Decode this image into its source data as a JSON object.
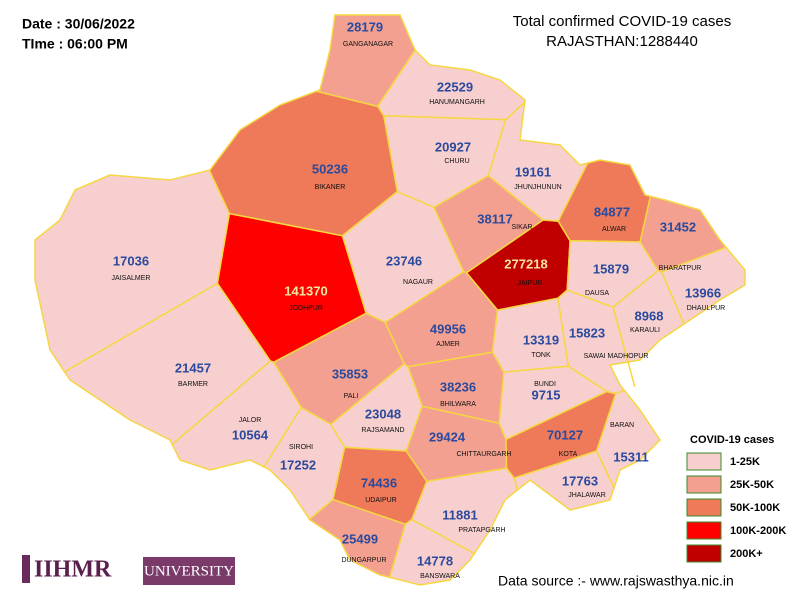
{
  "header": {
    "date": "Date : 30/06/2022",
    "time": "TIme : 06:00 PM",
    "title": "Total confirmed COVID-19 cases",
    "total": "RAJASTHAN:1288440"
  },
  "districts": [
    {
      "name": "GANGANAGAR",
      "cases": "28179",
      "color": "#f4a090"
    },
    {
      "name": "HANUMANGARH",
      "cases": "22529",
      "color": "#f8cfcf"
    },
    {
      "name": "CHURU",
      "cases": "20927",
      "color": "#f8cfcf"
    },
    {
      "name": "JHUNJHUNUN",
      "cases": "19161",
      "color": "#f8cfcf"
    },
    {
      "name": "BIKANER",
      "cases": "50236",
      "color": "#ef7a5a"
    },
    {
      "name": "SIKAR",
      "cases": "38117",
      "color": "#f4a090"
    },
    {
      "name": "ALWAR",
      "cases": "84877",
      "color": "#ef7a5a"
    },
    {
      "name": "BHARATPUR",
      "cases": "31452",
      "color": "#f4a090"
    },
    {
      "name": "JAISALMER",
      "cases": "17036",
      "color": "#f8cfcf"
    },
    {
      "name": "JAIPUR",
      "cases": "277218",
      "color": "#c00000",
      "label_color": "#f5e6a0"
    },
    {
      "name": "DAUSA",
      "cases": "15879",
      "color": "#f8cfcf"
    },
    {
      "name": "DHAULPUR",
      "cases": "13966",
      "color": "#f8cfcf"
    },
    {
      "name": "NAGAUR",
      "cases": "23746",
      "color": "#f8cfcf"
    },
    {
      "name": "JODHPUR",
      "cases": "141370",
      "color": "#fe0000",
      "label_color": "#f5e6a0"
    },
    {
      "name": "KARAULI",
      "cases": "8968",
      "color": "#f8cfcf"
    },
    {
      "name": "AJMER",
      "cases": "49956",
      "color": "#f4a090"
    },
    {
      "name": "TONK",
      "cases": "13319",
      "color": "#f8cfcf"
    },
    {
      "name": "SAWAI MADHOPUR",
      "cases": "15823",
      "color": "#f8cfcf"
    },
    {
      "name": "BARMER",
      "cases": "21457",
      "color": "#f8cfcf"
    },
    {
      "name": "PALI",
      "cases": "35853",
      "color": "#f4a090"
    },
    {
      "name": "BHILWARA",
      "cases": "38236",
      "color": "#f4a090"
    },
    {
      "name": "BUNDI",
      "cases": "9715",
      "color": "#f8cfcf"
    },
    {
      "name": "JALOR",
      "cases": "10564",
      "color": "#f8cfcf"
    },
    {
      "name": "RAJSAMAND",
      "cases": "23048",
      "color": "#f8cfcf"
    },
    {
      "name": "SIROHI",
      "cases": "17252",
      "color": "#f8cfcf"
    },
    {
      "name": "CHITTAURGARH",
      "cases": "29424",
      "color": "#f4a090"
    },
    {
      "name": "KOTA",
      "cases": "70127",
      "color": "#ef7a5a"
    },
    {
      "name": "BARAN",
      "cases": "15311",
      "color": "#f8cfcf"
    },
    {
      "name": "UDAIPUR",
      "cases": "74436",
      "color": "#ef7a5a"
    },
    {
      "name": "JHALAWAR",
      "cases": "17763",
      "color": "#f8cfcf"
    },
    {
      "name": "PRATAPGARH",
      "cases": "11881",
      "color": "#f8cfcf"
    },
    {
      "name": "DUNGARPUR",
      "cases": "25499",
      "color": "#f4a090"
    },
    {
      "name": "BANSWARA",
      "cases": "14778",
      "color": "#f8cfcf"
    }
  ],
  "legend": {
    "title": "COVID-19 cases",
    "items": [
      {
        "label": "1-25K",
        "color": "#f8cfcf"
      },
      {
        "label": "25K-50K",
        "color": "#f4a090"
      },
      {
        "label": "50K-100K",
        "color": "#ef7a5a"
      },
      {
        "label": "100K-200K",
        "color": "#fe0000"
      },
      {
        "label": "200K+",
        "color": "#c00000"
      }
    ]
  },
  "logo": {
    "main": "IIHMR",
    "sub": "UNIVERSITY"
  },
  "footer": {
    "source": "Data source :- www.rajswasthya.nic.in"
  }
}
